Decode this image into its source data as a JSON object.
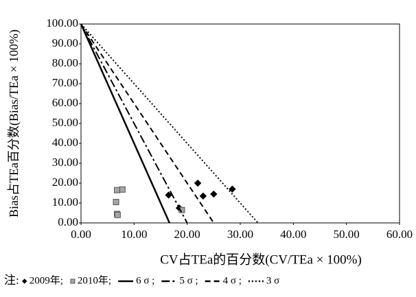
{
  "chart_data": {
    "type": "scatter",
    "x_label": "CV占TEa的百分数(CV/TEa × 100%)",
    "y_label": "Bias占TEa百分数(Bias/TEa × 100%)",
    "legend_title": "注:",
    "xlim": [
      0,
      60
    ],
    "ylim": [
      0,
      100
    ],
    "xticks": [
      {
        "value": 0,
        "label": "0.00"
      },
      {
        "value": 10,
        "label": "10.00"
      },
      {
        "value": 20,
        "label": "20.00"
      },
      {
        "value": 30,
        "label": "30.00"
      },
      {
        "value": 40,
        "label": "40.00"
      },
      {
        "value": 50,
        "label": "50.00"
      },
      {
        "value": 60,
        "label": "60.00"
      }
    ],
    "yticks": [
      {
        "value": 0,
        "label": "0.00"
      },
      {
        "value": 10,
        "label": "10.00"
      },
      {
        "value": 20,
        "label": "20.00"
      },
      {
        "value": 30,
        "label": "30.00"
      },
      {
        "value": 40,
        "label": "40.00"
      },
      {
        "value": 50,
        "label": "50.00"
      },
      {
        "value": 60,
        "label": "60.00"
      },
      {
        "value": 70,
        "label": "70.00"
      },
      {
        "value": 80,
        "label": "80.00"
      },
      {
        "value": 90,
        "label": "90.00"
      },
      {
        "value": 100,
        "label": "100.00"
      }
    ],
    "series": [
      {
        "name": "2009年;",
        "mode": "markers",
        "marker": "diamond",
        "color": "#000000",
        "x": [
          16.5,
          18.5,
          22,
          23,
          25,
          28.5
        ],
        "values": [
          14,
          7.5,
          20,
          13.5,
          14.5,
          17
        ]
      },
      {
        "name": "2010年;",
        "mode": "markers",
        "marker": "square",
        "color": "#a6a6a6",
        "x": [
          6.8,
          7.8,
          6.6,
          6.8,
          6.9,
          19
        ],
        "values": [
          16.5,
          16.8,
          10.5,
          4.5,
          4,
          6.5
        ]
      },
      {
        "name": "6 σ ;",
        "mode": "line",
        "dash": "solid",
        "color": "#000000",
        "x": [
          0,
          16.67
        ],
        "values": [
          100,
          0
        ]
      },
      {
        "name": "5 σ ;",
        "mode": "line",
        "dash": "dashdot",
        "color": "#000000",
        "x": [
          0,
          20
        ],
        "values": [
          100,
          0
        ]
      },
      {
        "name": "4 σ ;",
        "mode": "line",
        "dash": "dashed",
        "color": "#000000",
        "x": [
          0,
          25
        ],
        "values": [
          100,
          0
        ]
      },
      {
        "name": "3 σ",
        "mode": "line",
        "dash": "dotted",
        "color": "#000000",
        "x": [
          0,
          33.33
        ],
        "values": [
          100,
          0
        ]
      }
    ]
  }
}
